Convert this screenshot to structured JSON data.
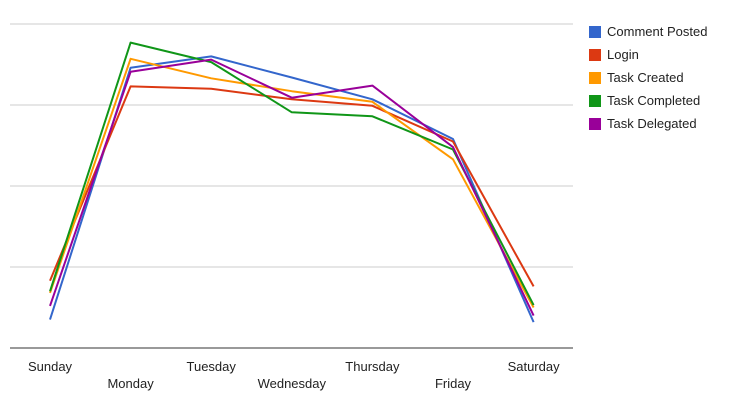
{
  "chart_data": {
    "type": "line",
    "title": "",
    "xlabel": "",
    "ylabel": "",
    "categories": [
      "Sunday",
      "Monday",
      "Tuesday",
      "Wednesday",
      "Thursday",
      "Friday",
      "Saturday"
    ],
    "ylim": [
      0,
      4
    ],
    "grid": true,
    "legend": "right",
    "series": [
      {
        "name": "Comment Posted",
        "color": "#3366CC",
        "values": [
          0.35,
          3.46,
          3.6,
          3.34,
          3.07,
          2.58,
          0.32
        ]
      },
      {
        "name": "Login",
        "color": "#DC3912",
        "values": [
          0.83,
          3.23,
          3.2,
          3.07,
          2.99,
          2.55,
          0.76
        ]
      },
      {
        "name": "Task Created",
        "color": "#FF9900",
        "values": [
          0.68,
          3.57,
          3.33,
          3.17,
          3.04,
          2.33,
          0.5
        ]
      },
      {
        "name": "Task Completed",
        "color": "#109618",
        "values": [
          0.7,
          3.77,
          3.53,
          2.91,
          2.86,
          2.45,
          0.53
        ]
      },
      {
        "name": "Task Delegated",
        "color": "#990099",
        "values": [
          0.52,
          3.41,
          3.56,
          3.09,
          3.24,
          2.48,
          0.4
        ]
      }
    ]
  }
}
